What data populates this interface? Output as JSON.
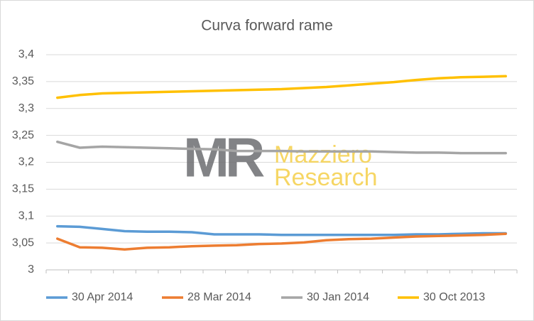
{
  "chart_data": {
    "type": "line",
    "title": "Curva forward rame",
    "categories": [
      null,
      null,
      null,
      null,
      null,
      null,
      null,
      null,
      null,
      null,
      null,
      null,
      null,
      null,
      null,
      null,
      null,
      null,
      null,
      null,
      null
    ],
    "series": [
      {
        "name": "30 Apr 2014",
        "color": "#5b9bd5",
        "values": [
          3.081,
          3.08,
          3.076,
          3.072,
          3.071,
          3.071,
          3.07,
          3.066,
          3.066,
          3.066,
          3.065,
          3.065,
          3.065,
          3.065,
          3.065,
          3.065,
          3.066,
          3.066,
          3.067,
          3.068,
          3.068
        ]
      },
      {
        "name": "28 Mar 2014",
        "color": "#ed7d31",
        "values": [
          3.058,
          3.042,
          3.041,
          3.038,
          3.041,
          3.042,
          3.044,
          3.045,
          3.046,
          3.048,
          3.049,
          3.051,
          3.055,
          3.057,
          3.058,
          3.06,
          3.062,
          3.063,
          3.064,
          3.065,
          3.067
        ]
      },
      {
        "name": "30 Jan 2014",
        "color": "#a5a5a5",
        "values": [
          3.238,
          3.227,
          3.229,
          3.228,
          3.227,
          3.226,
          3.225,
          3.224,
          3.221,
          3.221,
          3.221,
          3.22,
          3.22,
          3.22,
          3.22,
          3.219,
          3.218,
          3.218,
          3.217,
          3.217,
          3.217
        ]
      },
      {
        "name": "30 Oct 2013",
        "color": "#ffc000",
        "values": [
          3.32,
          3.325,
          3.328,
          3.329,
          3.33,
          3.331,
          3.332,
          3.333,
          3.334,
          3.335,
          3.336,
          3.338,
          3.34,
          3.343,
          3.346,
          3.349,
          3.353,
          3.356,
          3.358,
          3.359,
          3.36
        ]
      }
    ],
    "ylim": [
      3,
      3.4
    ],
    "yticks": [
      3,
      {
        "value": 3.05,
        "label": "3,05"
      },
      {
        "value": 3.1,
        "label": "3,1"
      },
      {
        "value": 3.15,
        "label": "3,15"
      },
      {
        "value": 3.2,
        "label": "3,2"
      },
      {
        "value": 3.25,
        "label": "3,25"
      },
      {
        "value": 3.3,
        "label": "3,3"
      },
      {
        "value": 3.35,
        "label": "3,35"
      },
      {
        "value": 3.4,
        "label": "3,4"
      }
    ],
    "grid": true,
    "legend": "bottom",
    "watermark": {
      "logo": "MR",
      "lines": [
        "Mazziero",
        "Research"
      ]
    }
  }
}
